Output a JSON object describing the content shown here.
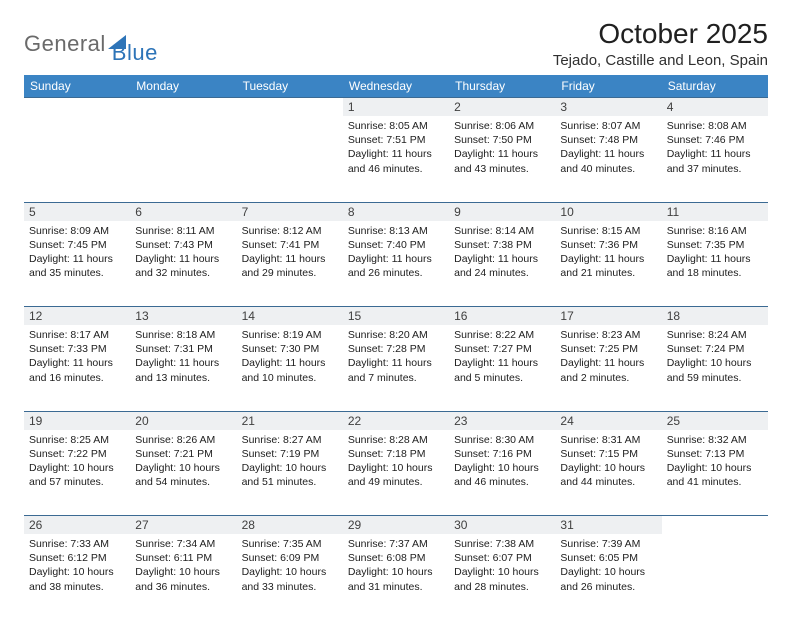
{
  "brand": {
    "part1": "General",
    "part2": "Blue"
  },
  "title": "October 2025",
  "location": "Tejado, Castille and Leon, Spain",
  "colors": {
    "header_bg": "#3b84c4",
    "header_text": "#ffffff",
    "daynum_bg": "#eef0f2",
    "rule": "#3b6a93",
    "brand_gray": "#6a6a6a",
    "brand_blue": "#2d74b8"
  },
  "weekdays": [
    "Sunday",
    "Monday",
    "Tuesday",
    "Wednesday",
    "Thursday",
    "Friday",
    "Saturday"
  ],
  "weeks": [
    {
      "nums": [
        "",
        "",
        "",
        "1",
        "2",
        "3",
        "4"
      ],
      "cells": [
        null,
        null,
        null,
        {
          "sunrise": "8:05 AM",
          "sunset": "7:51 PM",
          "daylight": "11 hours and 46 minutes."
        },
        {
          "sunrise": "8:06 AM",
          "sunset": "7:50 PM",
          "daylight": "11 hours and 43 minutes."
        },
        {
          "sunrise": "8:07 AM",
          "sunset": "7:48 PM",
          "daylight": "11 hours and 40 minutes."
        },
        {
          "sunrise": "8:08 AM",
          "sunset": "7:46 PM",
          "daylight": "11 hours and 37 minutes."
        }
      ]
    },
    {
      "nums": [
        "5",
        "6",
        "7",
        "8",
        "9",
        "10",
        "11"
      ],
      "cells": [
        {
          "sunrise": "8:09 AM",
          "sunset": "7:45 PM",
          "daylight": "11 hours and 35 minutes."
        },
        {
          "sunrise": "8:11 AM",
          "sunset": "7:43 PM",
          "daylight": "11 hours and 32 minutes."
        },
        {
          "sunrise": "8:12 AM",
          "sunset": "7:41 PM",
          "daylight": "11 hours and 29 minutes."
        },
        {
          "sunrise": "8:13 AM",
          "sunset": "7:40 PM",
          "daylight": "11 hours and 26 minutes."
        },
        {
          "sunrise": "8:14 AM",
          "sunset": "7:38 PM",
          "daylight": "11 hours and 24 minutes."
        },
        {
          "sunrise": "8:15 AM",
          "sunset": "7:36 PM",
          "daylight": "11 hours and 21 minutes."
        },
        {
          "sunrise": "8:16 AM",
          "sunset": "7:35 PM",
          "daylight": "11 hours and 18 minutes."
        }
      ]
    },
    {
      "nums": [
        "12",
        "13",
        "14",
        "15",
        "16",
        "17",
        "18"
      ],
      "cells": [
        {
          "sunrise": "8:17 AM",
          "sunset": "7:33 PM",
          "daylight": "11 hours and 16 minutes."
        },
        {
          "sunrise": "8:18 AM",
          "sunset": "7:31 PM",
          "daylight": "11 hours and 13 minutes."
        },
        {
          "sunrise": "8:19 AM",
          "sunset": "7:30 PM",
          "daylight": "11 hours and 10 minutes."
        },
        {
          "sunrise": "8:20 AM",
          "sunset": "7:28 PM",
          "daylight": "11 hours and 7 minutes."
        },
        {
          "sunrise": "8:22 AM",
          "sunset": "7:27 PM",
          "daylight": "11 hours and 5 minutes."
        },
        {
          "sunrise": "8:23 AM",
          "sunset": "7:25 PM",
          "daylight": "11 hours and 2 minutes."
        },
        {
          "sunrise": "8:24 AM",
          "sunset": "7:24 PM",
          "daylight": "10 hours and 59 minutes."
        }
      ]
    },
    {
      "nums": [
        "19",
        "20",
        "21",
        "22",
        "23",
        "24",
        "25"
      ],
      "cells": [
        {
          "sunrise": "8:25 AM",
          "sunset": "7:22 PM",
          "daylight": "10 hours and 57 minutes."
        },
        {
          "sunrise": "8:26 AM",
          "sunset": "7:21 PM",
          "daylight": "10 hours and 54 minutes."
        },
        {
          "sunrise": "8:27 AM",
          "sunset": "7:19 PM",
          "daylight": "10 hours and 51 minutes."
        },
        {
          "sunrise": "8:28 AM",
          "sunset": "7:18 PM",
          "daylight": "10 hours and 49 minutes."
        },
        {
          "sunrise": "8:30 AM",
          "sunset": "7:16 PM",
          "daylight": "10 hours and 46 minutes."
        },
        {
          "sunrise": "8:31 AM",
          "sunset": "7:15 PM",
          "daylight": "10 hours and 44 minutes."
        },
        {
          "sunrise": "8:32 AM",
          "sunset": "7:13 PM",
          "daylight": "10 hours and 41 minutes."
        }
      ]
    },
    {
      "nums": [
        "26",
        "27",
        "28",
        "29",
        "30",
        "31",
        ""
      ],
      "cells": [
        {
          "sunrise": "7:33 AM",
          "sunset": "6:12 PM",
          "daylight": "10 hours and 38 minutes."
        },
        {
          "sunrise": "7:34 AM",
          "sunset": "6:11 PM",
          "daylight": "10 hours and 36 minutes."
        },
        {
          "sunrise": "7:35 AM",
          "sunset": "6:09 PM",
          "daylight": "10 hours and 33 minutes."
        },
        {
          "sunrise": "7:37 AM",
          "sunset": "6:08 PM",
          "daylight": "10 hours and 31 minutes."
        },
        {
          "sunrise": "7:38 AM",
          "sunset": "6:07 PM",
          "daylight": "10 hours and 28 minutes."
        },
        {
          "sunrise": "7:39 AM",
          "sunset": "6:05 PM",
          "daylight": "10 hours and 26 minutes."
        },
        null
      ]
    }
  ],
  "labels": {
    "sunrise": "Sunrise:",
    "sunset": "Sunset:",
    "daylight": "Daylight:"
  }
}
